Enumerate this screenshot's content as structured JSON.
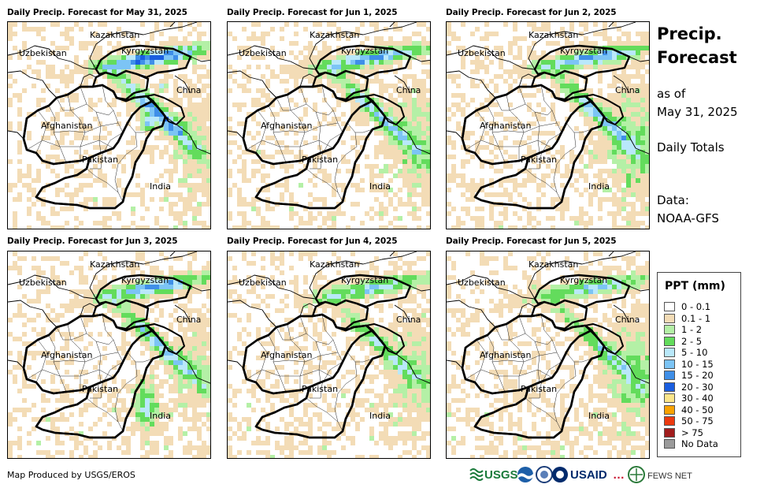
{
  "panels": [
    {
      "title": "Daily Precip. Forecast for May 31, 2025",
      "intensity": 3
    },
    {
      "title": "Daily Precip. Forecast for Jun 1, 2025",
      "intensity": 2
    },
    {
      "title": "Daily Precip. Forecast for Jun 2, 2025",
      "intensity": 2
    },
    {
      "title": "Daily Precip. Forecast for Jun 3, 2025",
      "intensity": 2
    },
    {
      "title": "Daily Precip. Forecast for Jun 4, 2025",
      "intensity": 1
    },
    {
      "title": "Daily Precip. Forecast for Jun 5, 2025",
      "intensity": 1
    }
  ],
  "map_labels": {
    "kazakhstan": "Kazakhstan",
    "uzbekistan": "Uzbekistan",
    "kyrgyzstan": "Kyrgyzstan",
    "china": "China",
    "afghanistan": "Afghanistan",
    "pakistan": "Pakistan",
    "india": "India"
  },
  "side": {
    "title_line1": "Precip.",
    "title_line2": "Forecast",
    "asof_line1": "as of",
    "asof_line2": "May 31, 2025",
    "totals": "Daily Totals",
    "data_line1": "Data:",
    "data_line2": "NOAA-GFS"
  },
  "legend": {
    "title": "PPT (mm)",
    "items": [
      {
        "label": "0 - 0.1",
        "color": "#ffffff"
      },
      {
        "label": "0.1 - 1",
        "color": "#f3dcb6"
      },
      {
        "label": "1 - 2",
        "color": "#b4f0a6"
      },
      {
        "label": "2 - 5",
        "color": "#63dc5c"
      },
      {
        "label": "5 - 10",
        "color": "#b9e8fa"
      },
      {
        "label": "10 - 15",
        "color": "#7cc4f5"
      },
      {
        "label": "15 - 20",
        "color": "#3f8fe8"
      },
      {
        "label": "20 - 30",
        "color": "#1a5ee0"
      },
      {
        "label": "30 - 40",
        "color": "#fbe58a"
      },
      {
        "label": "40 - 50",
        "color": "#f9a200"
      },
      {
        "label": "50 - 75",
        "color": "#ec3a10"
      },
      {
        "label": "> 75",
        "color": "#a11d1d"
      },
      {
        "label": "No Data",
        "color": "#9b9b9b"
      }
    ]
  },
  "credit": "Map Produced by USGS/EROS",
  "logos": {
    "usgs": "USGS",
    "usaid": "USAID",
    "fewsnet": "FEWS NET"
  }
}
